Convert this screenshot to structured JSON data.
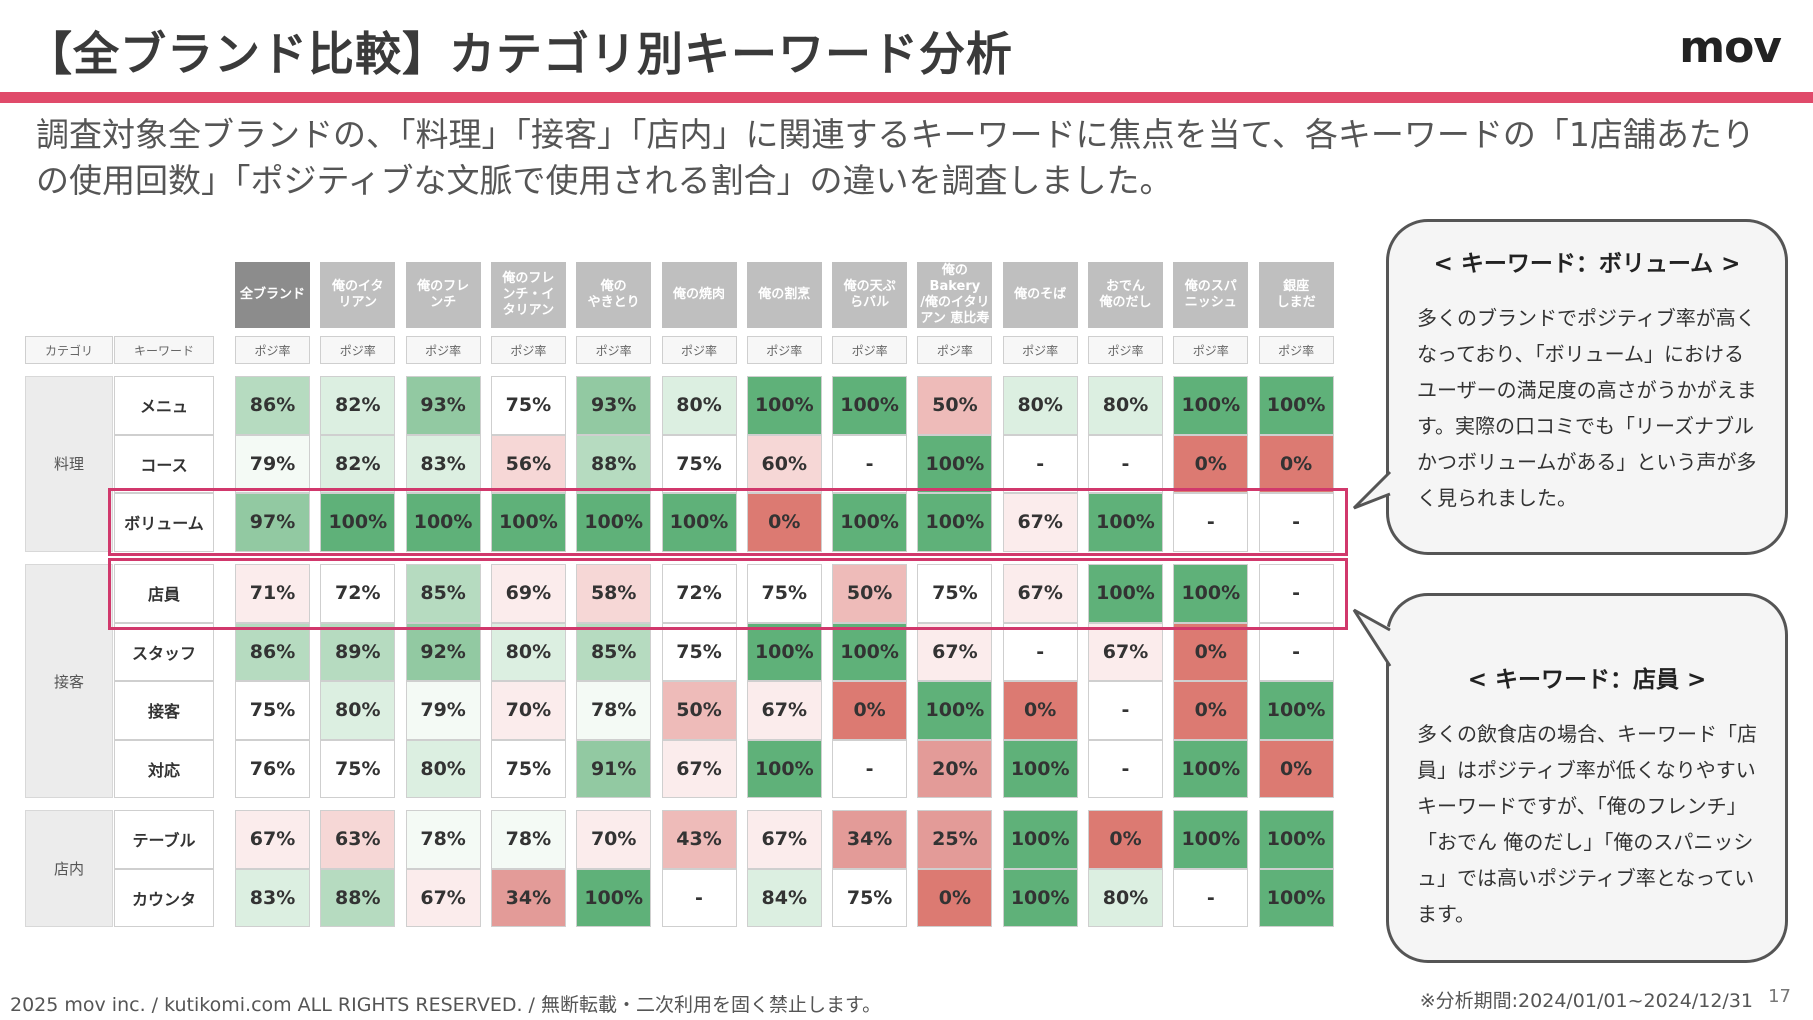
{
  "header": {
    "title": "【全ブランド比較】カテゴリ別キーワード分析",
    "logo": "mov",
    "accent_color": "#e04a6a"
  },
  "description": "調査対象全ブランドの、「料理」「接客」「店内」に関連するキーワードに焦点を当て、各キーワードの「1店舗あたりの使用回数」「ポジティブな文脈で使用される割合」の違いを調査しました。",
  "table": {
    "category_header": "カテゴリ",
    "keyword_header": "キーワード",
    "sub_label": "ポジ率",
    "brands": [
      "全ブランド",
      "俺のイタリアン",
      "俺のフレンチ",
      "俺のフレンチ・イタリアン",
      "俺のやきとり",
      "俺の焼肉",
      "俺の割烹",
      "俺の天ぷらバル",
      "俺のBakery/俺のイタリアン 恵比寿",
      "俺のそば",
      "おでん俺のだし",
      "俺のスパニッシュ",
      "銀座しまだ"
    ],
    "brand_labels": [
      "全ブランド",
      "俺のイタ\nリアン",
      "俺のフレ\nンチ",
      "俺のフレ\nンチ・イ\nタリアン",
      "俺の\nやきとり",
      "俺の焼肉",
      "俺の割烹",
      "俺の天ぷ\nらバル",
      "俺のBakery\n/俺のイタリ\nアン 恵比寿",
      "俺のそば",
      "おでん\n俺のだし",
      "俺のスパ\nニッシュ",
      "銀座\nしまだ"
    ],
    "categories": [
      {
        "name": "料理",
        "rows": [
          {
            "keyword": "メニュ",
            "values": [
              "86%",
              "82%",
              "93%",
              "75%",
              "93%",
              "80%",
              "100%",
              "100%",
              "50%",
              "80%",
              "80%",
              "100%",
              "100%"
            ]
          },
          {
            "keyword": "コース",
            "values": [
              "79%",
              "82%",
              "83%",
              "56%",
              "88%",
              "75%",
              "60%",
              "-",
              "100%",
              "-",
              "-",
              "0%",
              "0%"
            ]
          },
          {
            "keyword": "ボリューム",
            "values": [
              "97%",
              "100%",
              "100%",
              "100%",
              "100%",
              "100%",
              "0%",
              "100%",
              "100%",
              "67%",
              "100%",
              "-",
              "-"
            ]
          }
        ]
      },
      {
        "name": "接客",
        "rows": [
          {
            "keyword": "店員",
            "values": [
              "71%",
              "72%",
              "85%",
              "69%",
              "58%",
              "72%",
              "75%",
              "50%",
              "75%",
              "67%",
              "100%",
              "100%",
              "-"
            ]
          },
          {
            "keyword": "スタッフ",
            "values": [
              "86%",
              "89%",
              "92%",
              "80%",
              "85%",
              "75%",
              "100%",
              "100%",
              "67%",
              "-",
              "67%",
              "0%",
              "-"
            ]
          },
          {
            "keyword": "接客",
            "values": [
              "75%",
              "80%",
              "79%",
              "70%",
              "78%",
              "50%",
              "67%",
              "0%",
              "100%",
              "0%",
              "-",
              "0%",
              "100%"
            ]
          },
          {
            "keyword": "対応",
            "values": [
              "76%",
              "75%",
              "80%",
              "75%",
              "91%",
              "67%",
              "100%",
              "-",
              "20%",
              "100%",
              "-",
              "100%",
              "0%"
            ]
          }
        ]
      },
      {
        "name": "店内",
        "rows": [
          {
            "keyword": "テーブル",
            "values": [
              "67%",
              "63%",
              "78%",
              "78%",
              "70%",
              "43%",
              "67%",
              "34%",
              "25%",
              "100%",
              "0%",
              "100%",
              "100%"
            ]
          },
          {
            "keyword": "カウンタ",
            "values": [
              "83%",
              "88%",
              "67%",
              "34%",
              "100%",
              "-",
              "84%",
              "75%",
              "0%",
              "100%",
              "80%",
              "-",
              "100%"
            ]
          }
        ]
      }
    ]
  },
  "callouts": [
    {
      "title": "< キーワード：ボリューム >",
      "body": "多くのブランドでポジティブ率が高くなっており、「ボリューム」におけるユーザーの満足度の高さがうかがえます。実際の口コミでも「リーズナブルかつボリュームがある」という声が多く見られました。"
    },
    {
      "title": "< キーワード：店員 >",
      "body": "多くの飲食店の場合、キーワード「店員」はポジティブ率が低くなりやすいキーワードですが、「俺のフレンチ」「おでん 俺のだし」「俺のスパニッシュ」では高いポジティブ率となっています。"
    }
  ],
  "footer": {
    "copyright": "2025 mov inc. / kutikomi.com ALL RIGHTS RESERVED. / 無断転載・二次利用を固く禁止します。",
    "period": "※分析期間:2024/01/01~2024/12/31",
    "page": "17"
  }
}
